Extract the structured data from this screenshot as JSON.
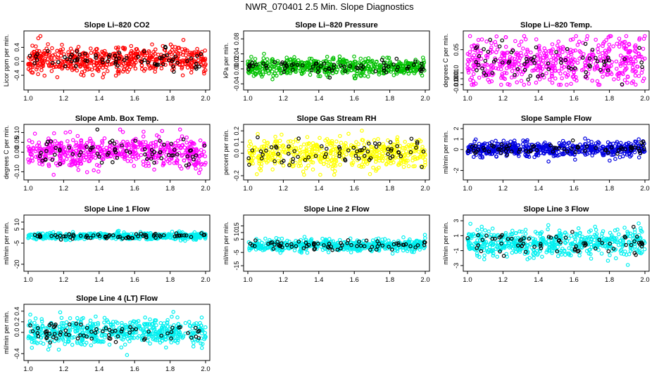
{
  "page_title": "NWR_070401  2.5 Min. Slope Diagnostics",
  "colors": {
    "red": "#ff0000",
    "green": "#00c000",
    "magenta": "#ff00ff",
    "yellow": "#ffff00",
    "blue": "#0000e0",
    "cyan": "#00f0f0",
    "black": "#000000"
  },
  "chart_data": [
    {
      "type": "scatter",
      "title": "Slope Li–820 CO2",
      "ylabel": "Licor ppm per min.",
      "color": "red",
      "xlim": [
        1.0,
        2.0
      ],
      "xticks": [
        "1.0",
        "1.2",
        "1.4",
        "1.6",
        "1.8",
        "2.0"
      ],
      "ylim": [
        -0.7,
        0.75
      ],
      "yticks": [
        {
          "v": -0.4,
          "label": "-0.4"
        },
        {
          "v": 0.0,
          "label": "0.0"
        },
        {
          "v": 0.4,
          "label": "0.4"
        }
      ],
      "noise": {
        "n_color": 560,
        "n_black": 70,
        "center": 0.05,
        "spread": 0.2,
        "seed": 11
      }
    },
    {
      "type": "scatter",
      "title": "Slope Li–820 Pressure",
      "ylabel": "kPa per min.",
      "color": "green",
      "xlim": [
        1.0,
        2.0
      ],
      "xticks": [
        "1.0",
        "1.2",
        "1.4",
        "1.6",
        "1.8",
        "2.0"
      ],
      "ylim": [
        -0.045,
        0.09
      ],
      "yticks": [
        {
          "v": -0.04,
          "label": "-0.04"
        },
        {
          "v": 0.0,
          "label": "0.00"
        },
        {
          "v": 0.02,
          "label": "0.02"
        },
        {
          "v": 0.04,
          "label": "0.04"
        },
        {
          "v": 0.08,
          "label": "0.08"
        }
      ],
      "noise": {
        "n_color": 560,
        "n_black": 70,
        "center": 0.005,
        "spread": 0.011,
        "seed": 22
      }
    },
    {
      "type": "scatter",
      "title": "Slope Li–820 Temp.",
      "ylabel": "degrees C per min.",
      "color": "magenta",
      "xlim": [
        1.0,
        2.0
      ],
      "xticks": [
        "1.0",
        "1.2",
        "1.4",
        "1.6",
        "1.8",
        "2.0"
      ],
      "ylim": [
        -0.012,
        0.075
      ],
      "yticks": [
        {
          "v": -0.01,
          "label": "-0.010"
        },
        {
          "v": 0.0,
          "label": "0.000"
        },
        {
          "v": 0.01,
          "label": "0.010"
        },
        {
          "v": 0.05,
          "label": "0.05"
        }
      ],
      "noise": {
        "n_color": 540,
        "n_black": 70,
        "center": 0.03,
        "spread": 0.02,
        "seed": 33
      }
    },
    {
      "type": "scatter",
      "title": "Slope Amb. Box Temp.",
      "ylabel": "degrees C per min.",
      "color": "magenta",
      "xlim": [
        1.0,
        2.0
      ],
      "xticks": [
        "1.0",
        "1.2",
        "1.4",
        "1.6",
        "1.8",
        "2.0"
      ],
      "ylim": [
        -0.12,
        0.12
      ],
      "yticks": [
        {
          "v": -0.1,
          "label": "-0.10"
        },
        {
          "v": 0.0,
          "label": "0.00"
        },
        {
          "v": 0.05,
          "label": "0.05"
        },
        {
          "v": 0.1,
          "label": "0.10"
        }
      ],
      "noise": {
        "n_color": 560,
        "n_black": 70,
        "center": 0.0,
        "spread": 0.04,
        "seed": 44
      }
    },
    {
      "type": "scatter",
      "title": "Slope Gas Stream RH",
      "ylabel": "percent per min.",
      "color": "yellow",
      "xlim": [
        1.0,
        2.0
      ],
      "xticks": [
        "1.0",
        "1.2",
        "1.4",
        "1.6",
        "1.8",
        "2.0"
      ],
      "ylim": [
        -0.2,
        0.22
      ],
      "yticks": [
        {
          "v": -0.2,
          "label": "-0.2"
        },
        {
          "v": 0.0,
          "label": "0.0"
        },
        {
          "v": 0.1,
          "label": "0.1"
        },
        {
          "v": 0.2,
          "label": "0.2"
        }
      ],
      "noise": {
        "n_color": 520,
        "n_black": 70,
        "center": 0.0,
        "spread": 0.07,
        "seed": 55
      }
    },
    {
      "type": "scatter",
      "title": "Slope Sample Flow",
      "ylabel": "ml/min per min.",
      "color": "blue",
      "xlim": [
        1.0,
        2.0
      ],
      "xticks": [
        "1.0",
        "1.2",
        "1.4",
        "1.6",
        "1.8",
        "2.0"
      ],
      "ylim": [
        -2.5,
        2.0
      ],
      "yticks": [
        {
          "v": -2,
          "label": "-2"
        },
        {
          "v": 0,
          "label": "0"
        },
        {
          "v": 1,
          "label": "1"
        },
        {
          "v": 2,
          "label": "2"
        }
      ],
      "noise": {
        "n_color": 560,
        "n_black": 70,
        "center": 0.05,
        "spread": 0.35,
        "seed": 66
      }
    },
    {
      "type": "scatter",
      "title": "Slope Line 1 Flow",
      "ylabel": "ml/min per min.",
      "color": "cyan",
      "xlim": [
        1.0,
        2.0
      ],
      "xticks": [
        "1.0",
        "1.2",
        "1.4",
        "1.6",
        "1.8",
        "2.0"
      ],
      "ylim": [
        -22,
        12
      ],
      "yticks": [
        {
          "v": -20,
          "label": "-20"
        },
        {
          "v": -5,
          "label": "-5"
        },
        {
          "v": 5,
          "label": "5"
        },
        {
          "v": 10,
          "label": "10"
        }
      ],
      "noise": {
        "n_color": 520,
        "n_black": 70,
        "center": 0.0,
        "spread": 1.2,
        "seed": 77
      }
    },
    {
      "type": "scatter",
      "title": "Slope Line 2 Flow",
      "ylabel": "ml/min per min.",
      "color": "cyan",
      "xlim": [
        1.0,
        2.0
      ],
      "xticks": [
        "1.0",
        "1.2",
        "1.4",
        "1.6",
        "1.8",
        "2.0"
      ],
      "ylim": [
        -16,
        20
      ],
      "yticks": [
        {
          "v": -15,
          "label": "-15"
        },
        {
          "v": -5,
          "label": "-5"
        },
        {
          "v": 5,
          "label": "5"
        },
        {
          "v": 10,
          "label": "10"
        },
        {
          "v": 15,
          "label": "15"
        }
      ],
      "noise": {
        "n_color": 520,
        "n_black": 70,
        "center": 0.5,
        "spread": 2.2,
        "seed": 88
      }
    },
    {
      "type": "scatter",
      "title": "Slope Line 3 Flow",
      "ylabel": "ml/min per min.",
      "color": "cyan",
      "xlim": [
        1.0,
        2.0
      ],
      "xticks": [
        "1.0",
        "1.2",
        "1.4",
        "1.6",
        "1.8",
        "2.0"
      ],
      "ylim": [
        -3.2,
        3.2
      ],
      "yticks": [
        {
          "v": -3,
          "label": "-3"
        },
        {
          "v": -1,
          "label": "-1"
        },
        {
          "v": 1,
          "label": "1"
        },
        {
          "v": 3,
          "label": "3"
        }
      ],
      "noise": {
        "n_color": 540,
        "n_black": 70,
        "center": 0.0,
        "spread": 0.9,
        "seed": 99
      }
    },
    {
      "type": "scatter",
      "title": "Slope Line 4 (LT) Flow",
      "ylabel": "ml/min per min.",
      "color": "cyan",
      "xlim": [
        1.0,
        2.0
      ],
      "xticks": [
        "1.0",
        "1.2",
        "1.4",
        "1.6",
        "1.8",
        "2.0"
      ],
      "ylim": [
        -0.45,
        0.45
      ],
      "yticks": [
        {
          "v": -0.4,
          "label": "-0.4"
        },
        {
          "v": 0.0,
          "label": "0.0"
        },
        {
          "v": 0.2,
          "label": "0.2"
        },
        {
          "v": 0.4,
          "label": "0.4"
        }
      ],
      "noise": {
        "n_color": 540,
        "n_black": 70,
        "center": 0.0,
        "spread": 0.12,
        "seed": 111
      }
    }
  ]
}
